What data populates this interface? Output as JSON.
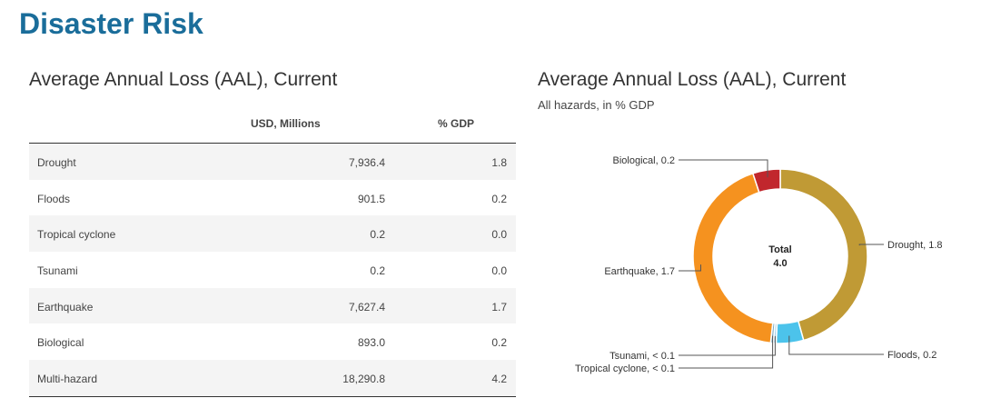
{
  "page": {
    "title": "Disaster Risk"
  },
  "table": {
    "title": "Average Annual Loss (AAL), Current",
    "columns": [
      "",
      "USD, Millions",
      "% GDP"
    ],
    "rows": [
      {
        "hazard": "Drought",
        "usd": "7,936.4",
        "gdp": "1.8"
      },
      {
        "hazard": "Floods",
        "usd": "901.5",
        "gdp": "0.2"
      },
      {
        "hazard": "Tropical cyclone",
        "usd": "0.2",
        "gdp": "0.0"
      },
      {
        "hazard": "Tsunami",
        "usd": "0.2",
        "gdp": "0.0"
      },
      {
        "hazard": "Earthquake",
        "usd": "7,627.4",
        "gdp": "1.7"
      },
      {
        "hazard": "Biological",
        "usd": "893.0",
        "gdp": "0.2"
      },
      {
        "hazard": "Multi-hazard",
        "usd": "18,290.8",
        "gdp": "4.2"
      }
    ]
  },
  "chart_data": {
    "type": "pie",
    "title": "Average Annual Loss (AAL), Current",
    "subtitle": "All hazards, in % GDP",
    "center_label": "Total",
    "center_value": "4.0",
    "slices": [
      {
        "name": "Drought",
        "value": 1.8,
        "label": "Drought, 1.8",
        "color": "#c09a35"
      },
      {
        "name": "Floods",
        "value": 0.2,
        "label": "Floods, 0.2",
        "color": "#4cc3eb"
      },
      {
        "name": "Tsunami",
        "value": 0.02,
        "label": "Tsunami, < 0.1",
        "color": "#a8d4ea"
      },
      {
        "name": "Tropical cyclone",
        "value": 0.02,
        "label": "Tropical cyclone, < 0.1",
        "color": "#7aaac4"
      },
      {
        "name": "Earthquake",
        "value": 1.7,
        "label": "Earthquake, 1.7",
        "color": "#f5921f"
      },
      {
        "name": "Biological",
        "value": 0.2,
        "label": "Biological, 0.2",
        "color": "#c1272d"
      }
    ]
  }
}
